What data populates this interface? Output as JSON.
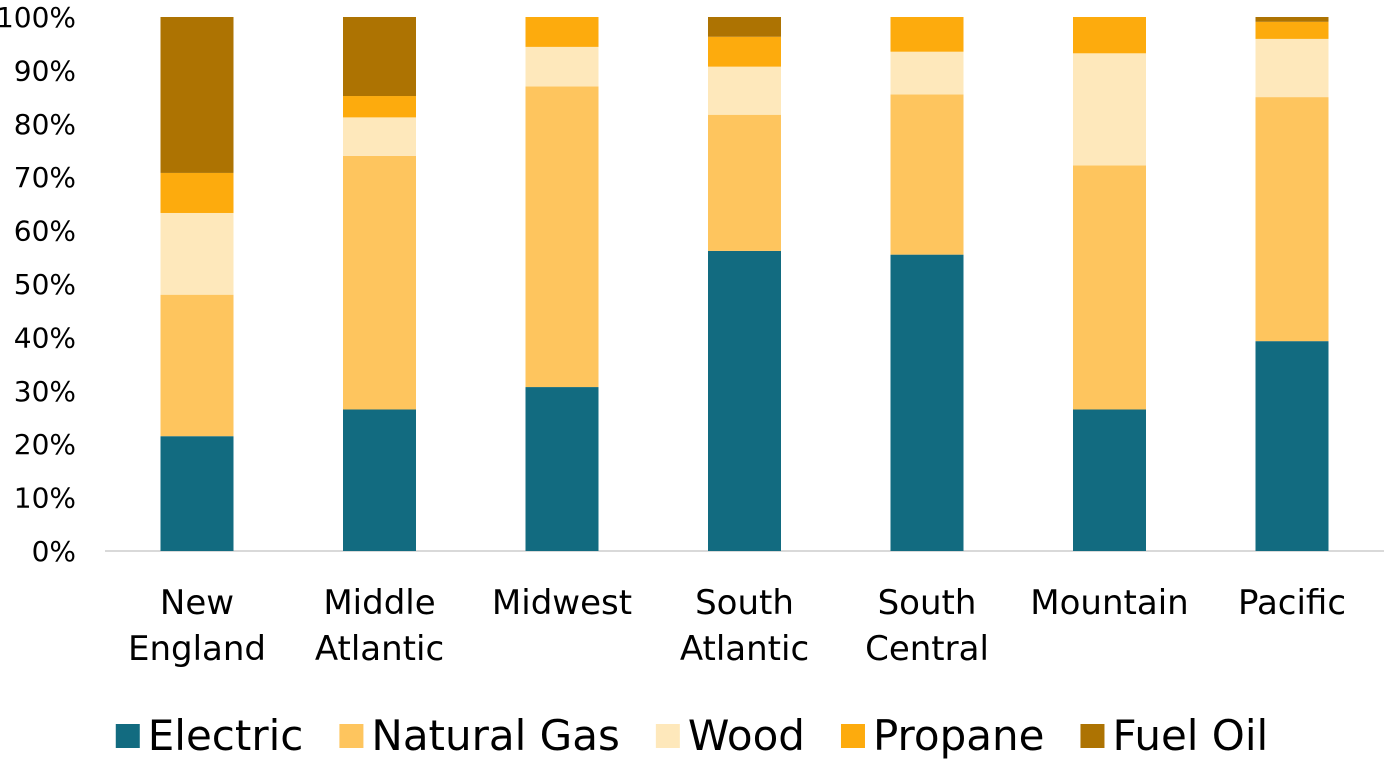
{
  "chart_data": {
    "type": "bar",
    "stacked": true,
    "percent": true,
    "categories": [
      [
        "New",
        "England"
      ],
      [
        "Middle",
        "Atlantic"
      ],
      [
        "Midwest"
      ],
      [
        "South",
        "Atlantic"
      ],
      [
        "South",
        "Central"
      ],
      [
        "Mountain"
      ],
      [
        "Pacific"
      ]
    ],
    "series": [
      {
        "name": "Electric",
        "color": "#126b80",
        "values": [
          21.5,
          26.5,
          30.7,
          56.2,
          55.5,
          26.5,
          39.3
        ]
      },
      {
        "name": "Natural Gas",
        "color": "#fec55e",
        "values": [
          26.5,
          47.5,
          56.3,
          25.5,
          30.0,
          45.7,
          45.7
        ]
      },
      {
        "name": "Wood",
        "color": "#fee8bb",
        "values": [
          15.3,
          7.2,
          7.4,
          9.0,
          8.0,
          21.0,
          10.9
        ]
      },
      {
        "name": "Propane",
        "color": "#fdab0d",
        "values": [
          7.5,
          4.0,
          5.6,
          5.6,
          6.5,
          6.8,
          3.2
        ]
      },
      {
        "name": "Fuel Oil",
        "color": "#ad7302",
        "values": [
          29.2,
          14.8,
          0.0,
          3.7,
          0.0,
          0.0,
          0.9
        ]
      }
    ],
    "y_ticks": [
      "0%",
      "10%",
      "20%",
      "30%",
      "40%",
      "50%",
      "60%",
      "70%",
      "80%",
      "90%",
      "100%"
    ],
    "ylim": [
      0,
      100
    ],
    "legend_position": "bottom",
    "grid": false
  }
}
